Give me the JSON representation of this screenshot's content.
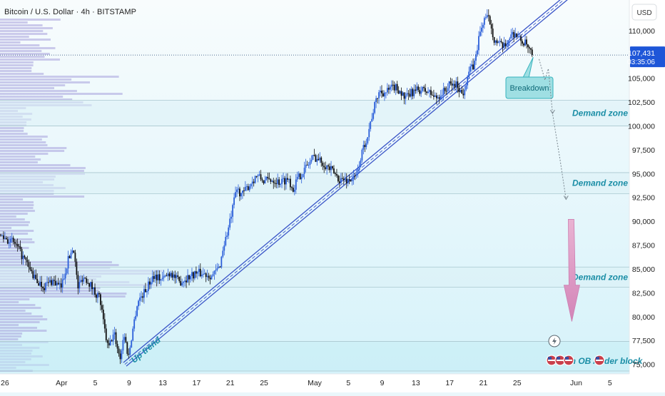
{
  "chart_data": {
    "type": "candlestick",
    "title": "Bitcoin / U.S. Dollar · 4h · BITSTAMP",
    "currency": "USD",
    "ylim": [
      74000,
      113200
    ],
    "y_ticks": [
      {
        "value": 110000,
        "label": "110,000"
      },
      {
        "value": 105000,
        "label": "105,000"
      },
      {
        "value": 102500,
        "label": "102,500"
      },
      {
        "value": 100000,
        "label": "100,000"
      },
      {
        "value": 97500,
        "label": "97,500"
      },
      {
        "value": 95000,
        "label": "95,000"
      },
      {
        "value": 92500,
        "label": "92,500"
      },
      {
        "value": 90000,
        "label": "90,000"
      },
      {
        "value": 87500,
        "label": "87,500"
      },
      {
        "value": 85000,
        "label": "85,000"
      },
      {
        "value": 82500,
        "label": "82,500"
      },
      {
        "value": 80000,
        "label": "80,000"
      },
      {
        "value": 77500,
        "label": "77,500"
      },
      {
        "value": 75000,
        "label": "75,000"
      }
    ],
    "x_ticks": [
      {
        "day": -6,
        "label": "26"
      },
      {
        "day": 1,
        "label": "Apr"
      },
      {
        "day": 5,
        "label": "5"
      },
      {
        "day": 9,
        "label": "9"
      },
      {
        "day": 13,
        "label": "13"
      },
      {
        "day": 17,
        "label": "17"
      },
      {
        "day": 21,
        "label": "21"
      },
      {
        "day": 25,
        "label": "25"
      },
      {
        "day": 31,
        "label": "May"
      },
      {
        "day": 35,
        "label": "5"
      },
      {
        "day": 39,
        "label": "9"
      },
      {
        "day": 43,
        "label": "13"
      },
      {
        "day": 47,
        "label": "17"
      },
      {
        "day": 51,
        "label": "21"
      },
      {
        "day": 55,
        "label": "25"
      },
      {
        "day": 62,
        "label": "Jun"
      },
      {
        "day": 66,
        "label": "5"
      }
    ],
    "xlim": [
      -6.3,
      68.3
    ],
    "current_price": {
      "value": 107431,
      "label": "107,431",
      "countdown": "03:35:06"
    },
    "price_path": [
      [
        -6.3,
        88600
      ],
      [
        -4.5,
        87700
      ],
      [
        -3,
        85500
      ],
      [
        -2,
        83800
      ],
      [
        -1,
        83200
      ],
      [
        0,
        83800
      ],
      [
        1,
        83000
      ],
      [
        1.8,
        85800
      ],
      [
        2.5,
        87400
      ],
      [
        3,
        83000
      ],
      [
        3.6,
        84200
      ],
      [
        4.2,
        83800
      ],
      [
        5,
        82600
      ],
      [
        5.6,
        82000
      ],
      [
        6.1,
        79000
      ],
      [
        6.6,
        76600
      ],
      [
        7.3,
        78300
      ],
      [
        8,
        75600
      ],
      [
        8.5,
        78200
      ],
      [
        9,
        75700
      ],
      [
        9.5,
        78600
      ],
      [
        10.1,
        81600
      ],
      [
        11,
        82700
      ],
      [
        12,
        84400
      ],
      [
        13,
        83900
      ],
      [
        14,
        84700
      ],
      [
        15,
        83600
      ],
      [
        16,
        84100
      ],
      [
        17,
        84600
      ],
      [
        18,
        84500
      ],
      [
        19,
        84300
      ],
      [
        19.8,
        85200
      ],
      [
        20.3,
        87500
      ],
      [
        20.8,
        89000
      ],
      [
        21.3,
        91000
      ],
      [
        21.8,
        93400
      ],
      [
        22.5,
        92800
      ],
      [
        23.5,
        94000
      ],
      [
        24.2,
        94800
      ],
      [
        25.1,
        94200
      ],
      [
        26,
        94400
      ],
      [
        27,
        94100
      ],
      [
        28,
        94500
      ],
      [
        28.5,
        93300
      ],
      [
        29,
        94400
      ],
      [
        30,
        95600
      ],
      [
        31,
        96800
      ],
      [
        32,
        96200
      ],
      [
        33,
        95400
      ],
      [
        34,
        94400
      ],
      [
        35,
        94300
      ],
      [
        36,
        94600
      ],
      [
        36.6,
        96900
      ],
      [
        37.4,
        99200
      ],
      [
        38,
        101500
      ],
      [
        38.7,
        103600
      ],
      [
        39.5,
        103500
      ],
      [
        40.5,
        104100
      ],
      [
        41.2,
        103700
      ],
      [
        41.8,
        102800
      ],
      [
        42.6,
        103500
      ],
      [
        43.5,
        103800
      ],
      [
        44.5,
        103600
      ],
      [
        45.5,
        102900
      ],
      [
        46.5,
        103700
      ],
      [
        47.1,
        104300
      ],
      [
        48,
        104300
      ],
      [
        48.6,
        103200
      ],
      [
        49.3,
        105600
      ],
      [
        50,
        106400
      ],
      [
        50.6,
        109500
      ],
      [
        51.2,
        111300
      ],
      [
        51.8,
        111200
      ],
      [
        52.4,
        109000
      ],
      [
        53,
        108500
      ],
      [
        53.6,
        108200
      ],
      [
        54.2,
        109400
      ],
      [
        54.8,
        109800
      ],
      [
        55.4,
        109000
      ],
      [
        56.1,
        108600
      ],
      [
        56.8,
        107431
      ]
    ],
    "trendline": {
      "label": "Up trend",
      "from": {
        "day": 8.5,
        "value": 75000
      },
      "to": {
        "day": 62,
        "value": 114300
      }
    },
    "volume_profile_side": "left",
    "zones": [
      {
        "label": "Demand zone",
        "top": 102700,
        "bottom": 100000
      },
      {
        "label": "Demand zone",
        "top": 95100,
        "bottom": 92900
      },
      {
        "label": "Demand zone",
        "top": 85200,
        "bottom": 83100
      },
      {
        "label": "Bullish OB /order block",
        "top": 77400,
        "bottom": 74300
      }
    ],
    "annotations": [
      {
        "type": "callout",
        "text": "Breakdown"
      },
      {
        "type": "projection_path",
        "description": "dotted path down to the demand zones"
      },
      {
        "type": "arrow_down",
        "color": "#d88fbd"
      }
    ],
    "colors": {
      "up_candle": "#2b5fd9",
      "down_candle": "#111111",
      "trendline": "#3a55c8",
      "zone_text": "#1b8ea6",
      "background_top": "#f8fcfd",
      "background_bottom": "#d6f2fa",
      "volume_profile": "#a8a2dc",
      "callout_fill": "#9fdfe3",
      "callout_border": "#36b3bd"
    }
  }
}
